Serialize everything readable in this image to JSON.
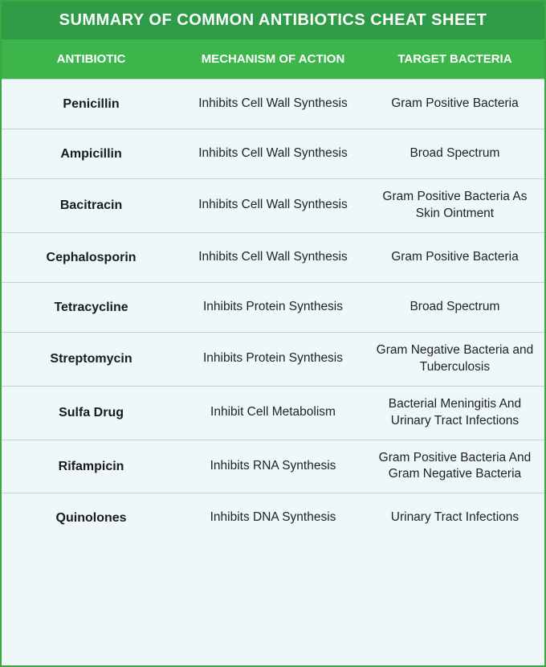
{
  "title": "SUMMARY OF COMMON ANTIBIOTICS CHEAT SHEET",
  "columns": {
    "antibiotic": "ANTIBIOTIC",
    "mechanism": "MECHANISM OF ACTION",
    "target": "TARGET BACTERIA"
  },
  "rows": [
    {
      "antibiotic": "Penicillin",
      "mechanism": "Inhibits Cell Wall Synthesis",
      "target": "Gram Positive Bacteria"
    },
    {
      "antibiotic": "Ampicillin",
      "mechanism": "Inhibits Cell Wall Synthesis",
      "target": "Broad Spectrum"
    },
    {
      "antibiotic": "Bacitracin",
      "mechanism": "Inhibits Cell Wall Synthesis",
      "target": "Gram Positive Bacteria As Skin Ointment"
    },
    {
      "antibiotic": "Cephalosporin",
      "mechanism": "Inhibits Cell Wall Synthesis",
      "target": "Gram Positive Bacteria"
    },
    {
      "antibiotic": "Tetracycline",
      "mechanism": "Inhibits Protein Synthesis",
      "target": "Broad Spectrum"
    },
    {
      "antibiotic": "Streptomycin",
      "mechanism": "Inhibits Protein Synthesis",
      "target": "Gram Negative Bacteria and Tuberculosis"
    },
    {
      "antibiotic": "Sulfa Drug",
      "mechanism": "Inhibit Cell Metabolism",
      "target": "Bacterial Meningitis And Urinary Tract Infections"
    },
    {
      "antibiotic": "Rifampicin",
      "mechanism": "Inhibits RNA Synthesis",
      "target": "Gram Positive Bacteria And Gram Negative Bacteria"
    },
    {
      "antibiotic": "Quinolones",
      "mechanism": "Inhibits DNA Synthesis",
      "target": "Urinary Tract Infections"
    }
  ],
  "style": {
    "title_bg": "#2e9b47",
    "header_bg": "#3cb54a",
    "row_bg": "#eef8f8",
    "border_color": "#b8d8d8",
    "outer_border": "#3da843",
    "title_fontsize": 20,
    "header_fontsize": 15,
    "cell_fontsize": 16,
    "font_family": "Arial"
  }
}
